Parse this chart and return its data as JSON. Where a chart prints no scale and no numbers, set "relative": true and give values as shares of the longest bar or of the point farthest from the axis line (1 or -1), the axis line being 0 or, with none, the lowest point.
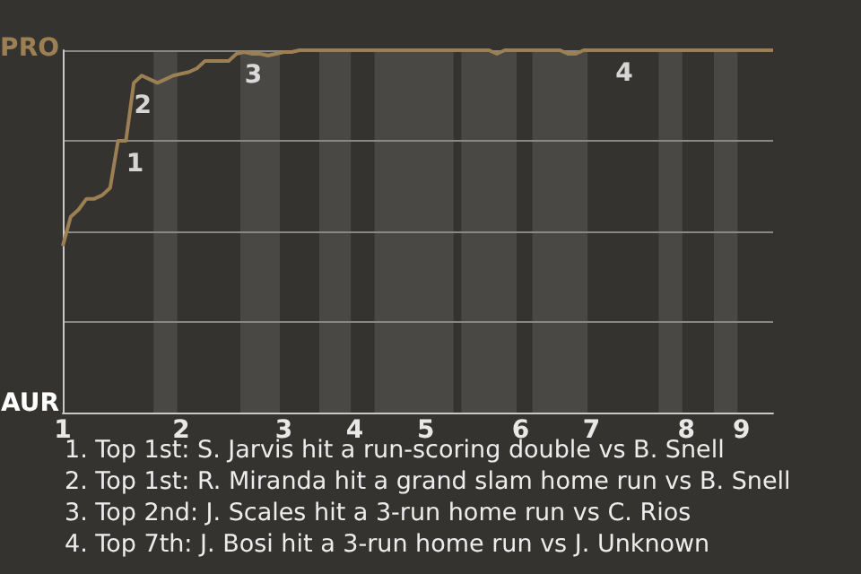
{
  "chart_data": {
    "type": "line",
    "relative": true,
    "categories": [
      "1",
      null,
      null,
      null,
      null,
      null,
      null,
      null,
      null,
      null,
      null,
      null,
      null,
      null,
      null,
      "2",
      null,
      null,
      null,
      null,
      null,
      null,
      null,
      null,
      null,
      null,
      null,
      null,
      "3",
      null,
      null,
      null,
      null,
      null,
      null,
      null,
      null,
      "4",
      null,
      null,
      null,
      null,
      null,
      null,
      null,
      null,
      "5",
      null,
      null,
      null,
      null,
      null,
      null,
      null,
      null,
      null,
      null,
      null,
      "6",
      null,
      null,
      null,
      null,
      null,
      null,
      null,
      null,
      "7",
      null,
      null,
      null,
      null,
      null,
      null,
      null,
      null,
      null,
      null,
      null,
      "8",
      null,
      null,
      null,
      null,
      null,
      null,
      "9",
      null,
      null,
      null,
      null
    ],
    "series": [
      {
        "color": "#9c8054",
        "values": [
          0.46,
          0.54,
          0.56,
          0.59,
          0.59,
          0.6,
          0.62,
          0.75,
          0.75,
          0.91,
          0.93,
          0.92,
          0.91,
          0.92,
          0.93,
          0.935,
          0.94,
          0.95,
          0.97,
          0.97,
          0.97,
          0.97,
          0.99,
          0.995,
          0.99,
          0.99,
          0.985,
          0.99,
          0.995,
          0.995,
          1,
          1,
          1,
          1,
          1,
          1,
          1,
          1,
          1,
          1,
          1,
          1,
          1,
          1,
          1,
          1,
          1,
          1,
          1,
          1,
          1,
          1,
          1,
          1,
          1,
          0.99,
          1,
          1,
          1,
          1,
          1,
          1,
          1,
          1,
          0.99,
          0.99,
          1,
          1,
          1,
          1,
          1,
          1,
          1,
          1,
          1,
          1,
          1,
          1,
          1,
          1,
          1,
          1,
          1,
          1,
          1,
          1,
          1,
          1,
          1,
          1,
          1
        ]
      }
    ],
    "grid": "y",
    "marker": "none",
    "line_style": "solid",
    "annotations": [
      "PRO",
      "AUR",
      {
        "text": "1",
        "y": 0.75
      },
      {
        "text": "2",
        "y": 0.91
      },
      {
        "text": "3",
        "y": 0.995
      },
      {
        "text": "4",
        "y": 1
      },
      "1. Top 1st: S. Jarvis hit a run-scoring double vs B. Snell",
      "2. Top 1st: R. Miranda hit a grand slam home run vs B. Snell",
      "3. Top 2nd: J. Scales hit a 3-run home run vs C. Rios",
      "4. Top 7th: J. Bosi hit a 3-run home run vs J. Unknown"
    ]
  }
}
